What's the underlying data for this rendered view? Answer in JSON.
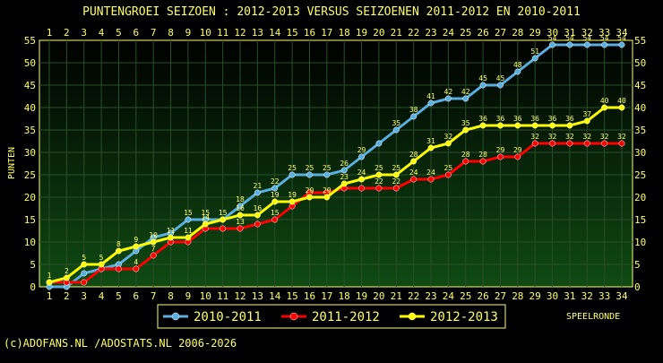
{
  "chart_data": {
    "type": "line",
    "title": "PUNTENGROEI  SEIZOEN : 2012-2013 VERSUS SEIZOENEN 2011-2012 EN 2010-2011",
    "ylabel": "PUNTEN",
    "xlabel": "SPEELRONDE",
    "x": [
      1,
      2,
      3,
      4,
      5,
      6,
      7,
      8,
      9,
      10,
      11,
      12,
      13,
      14,
      15,
      16,
      17,
      18,
      19,
      20,
      21,
      22,
      23,
      24,
      25,
      26,
      27,
      28,
      29,
      30,
      31,
      32,
      33,
      34
    ],
    "ylim": [
      0,
      55
    ],
    "yticks": [
      0,
      5,
      10,
      15,
      20,
      25,
      30,
      35,
      40,
      45,
      50,
      55
    ],
    "grid": true,
    "legend_position": "bottom",
    "series": [
      {
        "name": "2010-2011",
        "color": "#5aaee0",
        "values": [
          0,
          0,
          3,
          4,
          5,
          8,
          11,
          12,
          15,
          15,
          15,
          18,
          21,
          22,
          25,
          25,
          25,
          26,
          29,
          32,
          35,
          38,
          41,
          42,
          42,
          45,
          45,
          48,
          51,
          54,
          54,
          54,
          54,
          54
        ],
        "labels": [
          "",
          "",
          "",
          "",
          "",
          "",
          "",
          "",
          "15",
          "15",
          "",
          "18",
          "21",
          "22",
          "25",
          "25",
          "25",
          "26",
          "29",
          "",
          "35",
          "38",
          "41",
          "42",
          "42",
          "45",
          "45",
          "48",
          "51",
          "54",
          "54",
          "54",
          "54",
          "54"
        ]
      },
      {
        "name": "2011-2012",
        "color": "#ff0000",
        "values": [
          1,
          1,
          1,
          4,
          4,
          4,
          7,
          10,
          10,
          13,
          13,
          13,
          14,
          15,
          18,
          21,
          21,
          22,
          22,
          22,
          22,
          24,
          24,
          25,
          28,
          28,
          29,
          29,
          32,
          32,
          32,
          32,
          32,
          32
        ],
        "labels": [
          "",
          "",
          "",
          "",
          "",
          "4",
          "7",
          "",
          "",
          "",
          "",
          "13",
          "",
          "15",
          "",
          "",
          "",
          "",
          "",
          "22",
          "22",
          "24",
          "24",
          "25",
          "28",
          "28",
          "29",
          "29",
          "32",
          "32",
          "32",
          "32",
          "32",
          "32"
        ]
      },
      {
        "name": "2012-2013",
        "color": "#ffff00",
        "values": [
          1,
          2,
          5,
          5,
          8,
          9,
          10,
          11,
          11,
          14,
          15,
          16,
          16,
          19,
          19,
          20,
          20,
          23,
          24,
          25,
          25,
          28,
          31,
          32,
          35,
          36,
          36,
          36,
          36,
          36,
          36,
          37,
          40,
          40
        ],
        "labels": [
          "1",
          "2",
          "5",
          "5",
          "8",
          "9",
          "10",
          "11",
          "11",
          "14",
          "15",
          "16",
          "16",
          "19",
          "19",
          "20",
          "20",
          "23",
          "24",
          "25",
          "25",
          "28",
          "31",
          "32",
          "35",
          "36",
          "36",
          "36",
          "36",
          "36",
          "36",
          "37",
          "40",
          "40"
        ]
      }
    ]
  },
  "footer": {
    "copyright": "(c)ADOFANS.NL /ADOSTATS.NL 2006-2026"
  }
}
